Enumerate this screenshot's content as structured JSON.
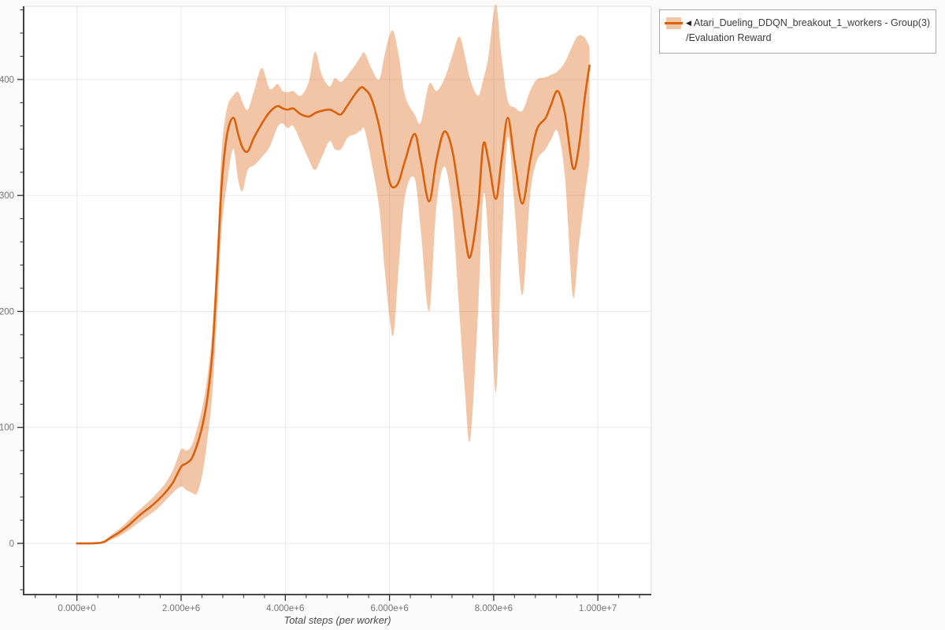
{
  "legend": {
    "icon": "◀",
    "line1": "Atari_Dueling_DDQN_breakout_1_workers - Group(3)",
    "line2": "/Evaluation Reward",
    "band_color": "rgba(217,98,14,0.37)",
    "line_color": "#d9620e"
  },
  "chart_data": {
    "type": "line",
    "title": "",
    "xlabel": "Total steps (per worker)",
    "ylabel": "",
    "grid": true,
    "legend_position": "top-right-outside",
    "xlim": [
      -1020000,
      11020000
    ],
    "ylim": [
      -44,
      463
    ],
    "x_minor_step": 400000,
    "y_minor_step": 20,
    "x_ticks": [
      {
        "v": 0,
        "label": "0.000e+0"
      },
      {
        "v": 2000000,
        "label": "2.000e+6"
      },
      {
        "v": 4000000,
        "label": "4.000e+6"
      },
      {
        "v": 6000000,
        "label": "6.000e+6"
      },
      {
        "v": 8000000,
        "label": "8.000e+6"
      },
      {
        "v": 10000000,
        "label": "1.000e+7"
      }
    ],
    "y_ticks": [
      {
        "v": 0,
        "label": "0"
      },
      {
        "v": 100,
        "label": "100"
      },
      {
        "v": 200,
        "label": "200"
      },
      {
        "v": 300,
        "label": "300"
      },
      {
        "v": 400,
        "label": "400"
      }
    ],
    "colors": {
      "line": "#d9620e",
      "band": "rgba(217,98,14,0.37)",
      "grid": "#e8e8e8",
      "axis": "#2e2e2e",
      "border": "#dcdcdc",
      "tick_label": "#767676"
    },
    "series": [
      {
        "name": "Atari_Dueling_DDQN_breakout_1_workers - Group(3)/Evaluation Reward",
        "x": [
          0,
          300000,
          500000,
          650000,
          800000,
          950000,
          1100000,
          1250000,
          1400000,
          1550000,
          1700000,
          1850000,
          2000000,
          2100000,
          2200000,
          2300000,
          2400000,
          2500000,
          2600000,
          2700000,
          2780000,
          2880000,
          3000000,
          3100000,
          3180000,
          3280000,
          3400000,
          3550000,
          3700000,
          3850000,
          3950000,
          4050000,
          4150000,
          4300000,
          4450000,
          4570000,
          4700000,
          4850000,
          4950000,
          5070000,
          5200000,
          5350000,
          5450000,
          5520000,
          5650000,
          5800000,
          5900000,
          6000000,
          6080000,
          6180000,
          6300000,
          6480000,
          6600000,
          6760000,
          6900000,
          7050000,
          7200000,
          7340000,
          7450000,
          7550000,
          7700000,
          7800000,
          7900000,
          8040000,
          8150000,
          8270000,
          8400000,
          8550000,
          8700000,
          8830000,
          9000000,
          9100000,
          9230000,
          9370000,
          9520000,
          9630000,
          9750000,
          9840000
        ],
        "mean": [
          0,
          0,
          1,
          5,
          9,
          14,
          20,
          26,
          31,
          37,
          44,
          53,
          66,
          69,
          73,
          84,
          100,
          124,
          165,
          242,
          310,
          352,
          367,
          352,
          341,
          338,
          350,
          362,
          372,
          377,
          375,
          374,
          375,
          370,
          368,
          371,
          373,
          374,
          372,
          370,
          378,
          388,
          393,
          392,
          384,
          360,
          335,
          312,
          307,
          312,
          330,
          353,
          330,
          295,
          330,
          355,
          340,
          300,
          265,
          247,
          290,
          344,
          330,
          297,
          330,
          367,
          330,
          293,
          330,
          357,
          367,
          378,
          390,
          370,
          324,
          340,
          385,
          412
        ],
        "lower": [
          0,
          0,
          0,
          3,
          6,
          10,
          15,
          20,
          25,
          30,
          37,
          44,
          49,
          46,
          44,
          43,
          58,
          88,
          130,
          205,
          272,
          310,
          340,
          312,
          304,
          322,
          326,
          333,
          342,
          359,
          362,
          358,
          360,
          346,
          331,
          322,
          333,
          347,
          340,
          340,
          350,
          353,
          356,
          357,
          330,
          290,
          240,
          195,
          181,
          240,
          300,
          315,
          270,
          200,
          290,
          325,
          290,
          200,
          130,
          90,
          200,
          300,
          260,
          130,
          250,
          350,
          290,
          214,
          300,
          330,
          340,
          348,
          355,
          315,
          213,
          255,
          300,
          330
        ],
        "upper": [
          0,
          1,
          2,
          7,
          12,
          18,
          25,
          31,
          37,
          44,
          52,
          64,
          81,
          80,
          84,
          98,
          116,
          142,
          185,
          265,
          340,
          375,
          386,
          389,
          380,
          374,
          390,
          410,
          392,
          396,
          390,
          389,
          390,
          386,
          398,
          424,
          404,
          394,
          401,
          398,
          404,
          413,
          420,
          423,
          410,
          400,
          420,
          438,
          441,
          420,
          386,
          370,
          363,
          396,
          390,
          400,
          420,
          437,
          420,
          400,
          386,
          400,
          420,
          465,
          420,
          382,
          376,
          373,
          390,
          400,
          402,
          404,
          407,
          415,
          430,
          438,
          436,
          428
        ]
      }
    ]
  }
}
